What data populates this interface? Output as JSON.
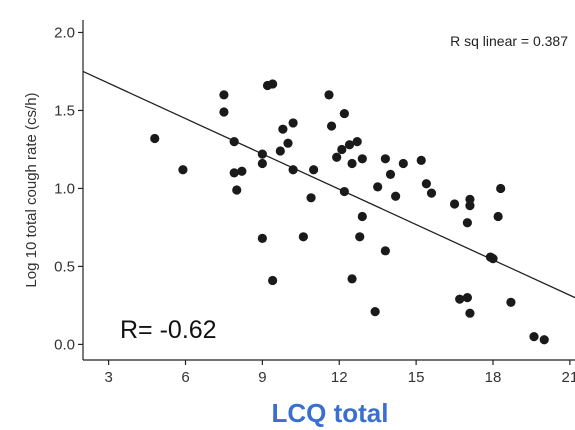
{
  "chart_data": {
    "type": "scatter",
    "xlabel": "LCQ total",
    "ylabel": "Log 10 total cough rate (cs/h)",
    "xlim": [
      2,
      21.2
    ],
    "ylim": [
      -0.1,
      2.08
    ],
    "xticks": [
      3,
      6,
      9,
      12,
      15,
      18,
      21
    ],
    "yticks": [
      0.0,
      0.5,
      1.0,
      1.5,
      2.0
    ],
    "xtick_labels": [
      "3",
      "6",
      "9",
      "12",
      "15",
      "18",
      "21"
    ],
    "ytick_labels": [
      "0.0",
      "0.5",
      "1.0",
      "1.5",
      "2.0"
    ],
    "annotation": "R sq linear = 0.387",
    "r_label": "R= -0.62",
    "xlabel_color": "#3a6fd0",
    "fit_line": {
      "x": [
        2,
        21.2
      ],
      "y": [
        1.75,
        0.3
      ]
    },
    "points": [
      {
        "x": 4.8,
        "y": 1.32
      },
      {
        "x": 5.9,
        "y": 1.12
      },
      {
        "x": 7.5,
        "y": 1.6
      },
      {
        "x": 7.5,
        "y": 1.49
      },
      {
        "x": 7.9,
        "y": 1.3
      },
      {
        "x": 7.9,
        "y": 1.1
      },
      {
        "x": 8.0,
        "y": 0.99
      },
      {
        "x": 8.2,
        "y": 1.11
      },
      {
        "x": 9.0,
        "y": 1.22
      },
      {
        "x": 9.0,
        "y": 1.16
      },
      {
        "x": 9.0,
        "y": 0.68
      },
      {
        "x": 9.2,
        "y": 1.66
      },
      {
        "x": 9.4,
        "y": 1.67
      },
      {
        "x": 9.4,
        "y": 0.41
      },
      {
        "x": 9.7,
        "y": 1.24
      },
      {
        "x": 9.8,
        "y": 1.38
      },
      {
        "x": 10.0,
        "y": 1.29
      },
      {
        "x": 10.2,
        "y": 1.42
      },
      {
        "x": 10.2,
        "y": 1.12
      },
      {
        "x": 10.6,
        "y": 0.69
      },
      {
        "x": 10.9,
        "y": 0.94
      },
      {
        "x": 11.0,
        "y": 1.12
      },
      {
        "x": 11.6,
        "y": 1.6
      },
      {
        "x": 11.7,
        "y": 1.4
      },
      {
        "x": 11.9,
        "y": 1.2
      },
      {
        "x": 12.1,
        "y": 1.25
      },
      {
        "x": 12.2,
        "y": 1.48
      },
      {
        "x": 12.2,
        "y": 0.98
      },
      {
        "x": 12.4,
        "y": 1.28
      },
      {
        "x": 12.5,
        "y": 1.16
      },
      {
        "x": 12.5,
        "y": 0.42
      },
      {
        "x": 12.7,
        "y": 1.3
      },
      {
        "x": 12.8,
        "y": 0.69
      },
      {
        "x": 12.9,
        "y": 0.82
      },
      {
        "x": 12.9,
        "y": 1.19
      },
      {
        "x": 13.4,
        "y": 0.21
      },
      {
        "x": 13.5,
        "y": 1.01
      },
      {
        "x": 13.8,
        "y": 1.19
      },
      {
        "x": 13.8,
        "y": 0.6
      },
      {
        "x": 14.0,
        "y": 1.09
      },
      {
        "x": 14.2,
        "y": 0.95
      },
      {
        "x": 14.5,
        "y": 1.16
      },
      {
        "x": 15.2,
        "y": 1.18
      },
      {
        "x": 15.4,
        "y": 1.03
      },
      {
        "x": 15.6,
        "y": 0.97
      },
      {
        "x": 16.5,
        "y": 0.9
      },
      {
        "x": 16.7,
        "y": 0.29
      },
      {
        "x": 17.0,
        "y": 0.3
      },
      {
        "x": 17.0,
        "y": 0.78
      },
      {
        "x": 17.1,
        "y": 0.93
      },
      {
        "x": 17.1,
        "y": 0.89
      },
      {
        "x": 17.1,
        "y": 0.2
      },
      {
        "x": 17.9,
        "y": 0.56
      },
      {
        "x": 18.0,
        "y": 0.55
      },
      {
        "x": 18.2,
        "y": 0.82
      },
      {
        "x": 18.3,
        "y": 1.0
      },
      {
        "x": 18.7,
        "y": 0.27
      },
      {
        "x": 19.6,
        "y": 0.05
      },
      {
        "x": 20.0,
        "y": 0.03
      }
    ]
  }
}
